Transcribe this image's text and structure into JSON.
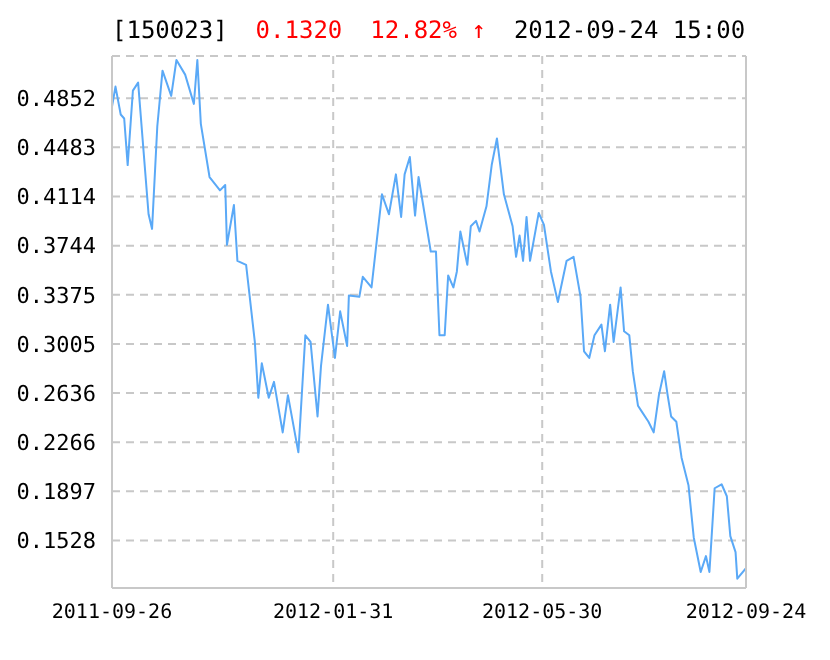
{
  "chart_data": {
    "type": "line",
    "title": "[150023]",
    "annotations": [
      "0.1320",
      "12.82% ↑",
      "2012-09-24 15:00"
    ],
    "x": [
      "2011-09-26",
      "2011-09-28",
      "2011-10-01",
      "2011-10-03",
      "2011-10-05",
      "2011-10-08",
      "2011-10-11",
      "2011-10-17",
      "2011-10-19",
      "2011-10-22",
      "2011-10-25",
      "2011-10-30",
      "2011-11-02",
      "2011-11-07",
      "2011-11-12",
      "2011-11-14",
      "2011-11-16",
      "2011-11-21",
      "2011-11-27",
      "2011-11-30",
      "2011-12-01",
      "2011-12-05",
      "2011-12-07",
      "2011-12-12",
      "2011-12-17",
      "2011-12-19",
      "2011-12-21",
      "2011-12-25",
      "2011-12-28",
      "2012-01-02",
      "2012-01-05",
      "2012-01-11",
      "2012-01-15",
      "2012-01-18",
      "2012-01-22",
      "2012-01-24",
      "2012-01-28",
      "2012-02-01",
      "2012-02-04",
      "2012-02-08",
      "2012-02-09",
      "2012-02-15",
      "2012-02-17",
      "2012-02-22",
      "2012-02-28",
      "2012-03-03",
      "2012-03-07",
      "2012-03-10",
      "2012-03-12",
      "2012-03-15",
      "2012-03-18",
      "2012-03-20",
      "2012-03-27",
      "2012-03-30",
      "2012-04-01",
      "2012-04-04",
      "2012-04-06",
      "2012-04-09",
      "2012-04-11",
      "2012-04-13",
      "2012-04-17",
      "2012-04-19",
      "2012-04-22",
      "2012-04-24",
      "2012-04-28",
      "2012-05-01",
      "2012-05-04",
      "2012-05-08",
      "2012-05-13",
      "2012-05-15",
      "2012-05-17",
      "2012-05-19",
      "2012-05-21",
      "2012-05-23",
      "2012-05-28",
      "2012-05-31",
      "2012-06-04",
      "2012-06-08",
      "2012-06-13",
      "2012-06-17",
      "2012-06-21",
      "2012-06-23",
      "2012-06-26",
      "2012-06-29",
      "2012-07-03",
      "2012-07-05",
      "2012-07-08",
      "2012-07-10",
      "2012-07-14",
      "2012-07-16",
      "2012-07-19",
      "2012-07-21",
      "2012-07-24",
      "2012-07-26",
      "2012-07-30",
      "2012-08-02",
      "2012-08-05",
      "2012-08-08",
      "2012-08-10",
      "2012-08-12",
      "2012-08-15",
      "2012-08-18",
      "2012-08-22",
      "2012-08-25",
      "2012-08-29",
      "2012-09-01",
      "2012-09-03",
      "2012-09-06",
      "2012-09-10",
      "2012-09-13",
      "2012-09-15",
      "2012-09-18",
      "2012-09-19",
      "2012-09-24"
    ],
    "series": [
      {
        "color": "#5aa9f7",
        "values": [
          0.479,
          0.494,
          0.473,
          0.47,
          0.435,
          0.491,
          0.497,
          0.398,
          0.387,
          0.464,
          0.506,
          0.487,
          0.514,
          0.503,
          0.481,
          0.514,
          0.466,
          0.426,
          0.416,
          0.42,
          0.375,
          0.405,
          0.363,
          0.36,
          0.302,
          0.26,
          0.286,
          0.26,
          0.272,
          0.234,
          0.262,
          0.219,
          0.307,
          0.302,
          0.246,
          0.284,
          0.33,
          0.29,
          0.325,
          0.299,
          0.337,
          0.336,
          0.351,
          0.343,
          0.413,
          0.398,
          0.428,
          0.396,
          0.428,
          0.441,
          0.397,
          0.426,
          0.37,
          0.37,
          0.307,
          0.307,
          0.352,
          0.343,
          0.355,
          0.385,
          0.36,
          0.389,
          0.393,
          0.385,
          0.404,
          0.435,
          0.455,
          0.413,
          0.389,
          0.366,
          0.382,
          0.363,
          0.396,
          0.363,
          0.399,
          0.39,
          0.355,
          0.332,
          0.363,
          0.366,
          0.336,
          0.295,
          0.29,
          0.307,
          0.315,
          0.295,
          0.33,
          0.302,
          0.343,
          0.31,
          0.307,
          0.28,
          0.254,
          0.25,
          0.242,
          0.234,
          0.262,
          0.28,
          0.262,
          0.246,
          0.242,
          0.215,
          0.194,
          0.155,
          0.129,
          0.141,
          0.129,
          0.192,
          0.195,
          0.186,
          0.156,
          0.144,
          0.124,
          0.132
        ]
      }
    ],
    "xlim": [
      "2011-09-26",
      "2012-09-24"
    ],
    "xticks": [
      "2011-09-26",
      "2012-01-31",
      "2012-05-30",
      "2012-09-24"
    ],
    "ylim": [
      0.117,
      0.517
    ],
    "yticks": [
      0.1528,
      0.1897,
      0.2266,
      0.2636,
      0.3005,
      0.3375,
      0.3744,
      0.4114,
      0.4483,
      0.4852
    ],
    "grid": true,
    "line_style": "solid",
    "marker": "none",
    "legend": false
  }
}
